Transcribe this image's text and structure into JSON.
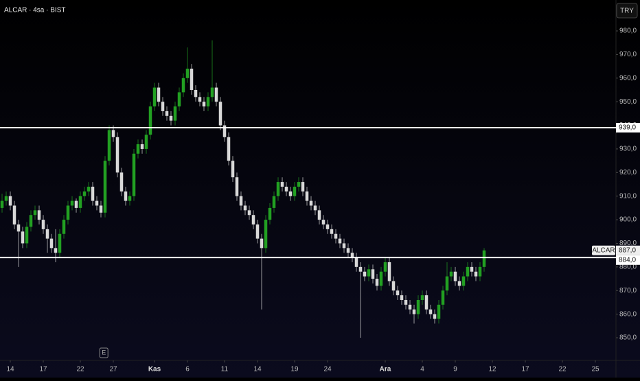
{
  "chart_data": {
    "type": "candlestick",
    "title": "ALCAR · 4sa · BIST",
    "currency": "TRY",
    "symbol": "ALCAR",
    "up_color": "#22a022",
    "down_color": "#d8d8d8",
    "ohlc": [
      [
        905,
        911,
        903,
        908
      ],
      [
        908,
        912,
        906,
        910
      ],
      [
        910,
        912,
        904,
        906
      ],
      [
        906,
        908,
        896,
        898
      ],
      [
        898,
        900,
        880,
        895
      ],
      [
        895,
        897,
        888,
        890
      ],
      [
        890,
        899,
        888,
        897
      ],
      [
        897,
        904,
        895,
        902
      ],
      [
        902,
        906,
        900,
        904
      ],
      [
        904,
        906,
        898,
        900
      ],
      [
        900,
        902,
        894,
        896
      ],
      [
        896,
        898,
        886,
        892
      ],
      [
        892,
        894,
        886,
        888
      ],
      [
        888,
        896,
        882,
        886
      ],
      [
        886,
        896,
        884,
        894
      ],
      [
        894,
        902,
        892,
        900
      ],
      [
        900,
        908,
        898,
        906
      ],
      [
        906,
        910,
        904,
        908
      ],
      [
        908,
        909,
        903,
        905
      ],
      [
        905,
        912,
        903,
        910
      ],
      [
        910,
        914,
        908,
        912
      ],
      [
        912,
        916,
        910,
        914
      ],
      [
        914,
        916,
        906,
        908
      ],
      [
        908,
        910,
        904,
        906
      ],
      [
        906,
        908,
        901,
        903
      ],
      [
        903,
        927,
        901,
        925
      ],
      [
        925,
        940,
        923,
        938
      ],
      [
        938,
        940,
        933,
        935
      ],
      [
        935,
        937,
        918,
        920
      ],
      [
        920,
        922,
        910,
        912
      ],
      [
        912,
        914,
        906,
        908
      ],
      [
        908,
        912,
        906,
        910
      ],
      [
        910,
        930,
        908,
        928
      ],
      [
        928,
        934,
        926,
        932
      ],
      [
        932,
        934,
        928,
        930
      ],
      [
        930,
        938,
        928,
        936
      ],
      [
        936,
        950,
        934,
        948
      ],
      [
        948,
        958,
        946,
        956
      ],
      [
        956,
        958,
        948,
        950
      ],
      [
        950,
        952,
        944,
        946
      ],
      [
        946,
        948,
        942,
        944
      ],
      [
        944,
        946,
        940,
        942
      ],
      [
        942,
        950,
        940,
        948
      ],
      [
        948,
        956,
        946,
        954
      ],
      [
        954,
        962,
        952,
        960
      ],
      [
        960,
        973,
        958,
        964
      ],
      [
        964,
        966,
        953,
        955
      ],
      [
        955,
        957,
        950,
        952
      ],
      [
        952,
        954,
        948,
        950
      ],
      [
        950,
        952,
        946,
        948
      ],
      [
        948,
        954,
        946,
        952
      ],
      [
        952,
        976,
        950,
        956
      ],
      [
        956,
        958,
        948,
        950
      ],
      [
        950,
        952,
        938,
        940
      ],
      [
        940,
        942,
        933,
        935
      ],
      [
        935,
        937,
        923,
        925
      ],
      [
        925,
        927,
        916,
        918
      ],
      [
        918,
        920,
        908,
        910
      ],
      [
        910,
        912,
        904,
        906
      ],
      [
        906,
        908,
        902,
        904
      ],
      [
        904,
        906,
        900,
        902
      ],
      [
        902,
        904,
        896,
        898
      ],
      [
        898,
        900,
        890,
        892
      ],
      [
        892,
        894,
        862,
        888
      ],
      [
        888,
        902,
        886,
        900
      ],
      [
        900,
        907,
        898,
        905
      ],
      [
        905,
        912,
        903,
        910
      ],
      [
        910,
        918,
        908,
        916
      ],
      [
        916,
        918,
        912,
        914
      ],
      [
        914,
        916,
        910,
        912
      ],
      [
        912,
        914,
        908,
        910
      ],
      [
        910,
        916,
        908,
        914
      ],
      [
        914,
        918,
        912,
        916
      ],
      [
        916,
        918,
        910,
        912
      ],
      [
        912,
        914,
        906,
        908
      ],
      [
        908,
        910,
        904,
        906
      ],
      [
        906,
        908,
        902,
        904
      ],
      [
        904,
        906,
        898,
        900
      ],
      [
        900,
        902,
        896,
        898
      ],
      [
        898,
        900,
        894,
        896
      ],
      [
        896,
        898,
        892,
        894
      ],
      [
        894,
        896,
        890,
        892
      ],
      [
        892,
        894,
        888,
        890
      ],
      [
        890,
        892,
        886,
        888
      ],
      [
        888,
        890,
        884,
        886
      ],
      [
        886,
        888,
        882,
        884
      ],
      [
        884,
        886,
        878,
        880
      ],
      [
        880,
        882,
        850,
        878
      ],
      [
        878,
        880,
        874,
        876
      ],
      [
        876,
        881,
        874,
        879
      ],
      [
        879,
        881,
        873,
        875
      ],
      [
        875,
        877,
        870,
        872
      ],
      [
        872,
        880,
        870,
        878
      ],
      [
        878,
        884,
        876,
        882
      ],
      [
        882,
        884,
        872,
        874
      ],
      [
        874,
        876,
        868,
        870
      ],
      [
        870,
        872,
        866,
        868
      ],
      [
        868,
        870,
        864,
        866
      ],
      [
        866,
        868,
        862,
        864
      ],
      [
        864,
        866,
        860,
        862
      ],
      [
        862,
        864,
        856,
        860
      ],
      [
        860,
        868,
        858,
        866
      ],
      [
        866,
        870,
        864,
        868
      ],
      [
        868,
        870,
        860,
        862
      ],
      [
        862,
        864,
        858,
        860
      ],
      [
        860,
        862,
        856,
        858
      ],
      [
        858,
        866,
        856,
        864
      ],
      [
        864,
        872,
        862,
        870
      ],
      [
        870,
        882,
        868,
        876
      ],
      [
        876,
        880,
        874,
        878
      ],
      [
        878,
        880,
        872,
        874
      ],
      [
        874,
        876,
        870,
        872
      ],
      [
        872,
        878,
        870,
        876
      ],
      [
        876,
        882,
        874,
        880
      ],
      [
        880,
        882,
        876,
        878
      ],
      [
        878,
        880,
        874,
        876
      ],
      [
        876,
        882,
        874,
        880
      ],
      [
        880,
        888,
        878,
        887
      ]
    ],
    "xlim": [
      -0.5,
      149
    ],
    "xticks": [
      {
        "value": 2,
        "label": "14"
      },
      {
        "value": 10,
        "label": "17"
      },
      {
        "value": 19,
        "label": "22"
      },
      {
        "value": 27,
        "label": "27"
      },
      {
        "value": 37,
        "label": "Kas"
      },
      {
        "value": 45,
        "label": "6"
      },
      {
        "value": 54,
        "label": "11"
      },
      {
        "value": 62,
        "label": "14"
      },
      {
        "value": 71,
        "label": "19"
      },
      {
        "value": 79,
        "label": "24"
      },
      {
        "value": 93,
        "label": "Ara"
      },
      {
        "value": 102,
        "label": "4"
      },
      {
        "value": 110,
        "label": "9"
      },
      {
        "value": 119,
        "label": "12"
      },
      {
        "value": 127,
        "label": "17"
      },
      {
        "value": 136,
        "label": "22"
      },
      {
        "value": 144,
        "label": "25"
      }
    ],
    "ylim": [
      840.4,
      993.1
    ],
    "yticks": [
      {
        "value": 850,
        "label": "850,0"
      },
      {
        "value": 860,
        "label": "860,0"
      },
      {
        "value": 870,
        "label": "870,0"
      },
      {
        "value": 880,
        "label": "880,0"
      },
      {
        "value": 890,
        "label": "890,0"
      },
      {
        "value": 900,
        "label": "900,0"
      },
      {
        "value": 910,
        "label": "910,0"
      },
      {
        "value": 920,
        "label": "920,0"
      },
      {
        "value": 930,
        "label": "930,0"
      },
      {
        "value": 940,
        "label": "940,0"
      },
      {
        "value": 950,
        "label": "950,0"
      },
      {
        "value": 960,
        "label": "960,0"
      },
      {
        "value": 970,
        "label": "970,0"
      },
      {
        "value": 980,
        "label": "980,0"
      }
    ],
    "levels": [
      {
        "value": 939,
        "label": "939,0"
      },
      {
        "value": 884,
        "label": "884,0"
      }
    ],
    "last_price": {
      "value": 887,
      "label": "887,0"
    },
    "event": {
      "index": 24.7,
      "label": "E"
    }
  }
}
